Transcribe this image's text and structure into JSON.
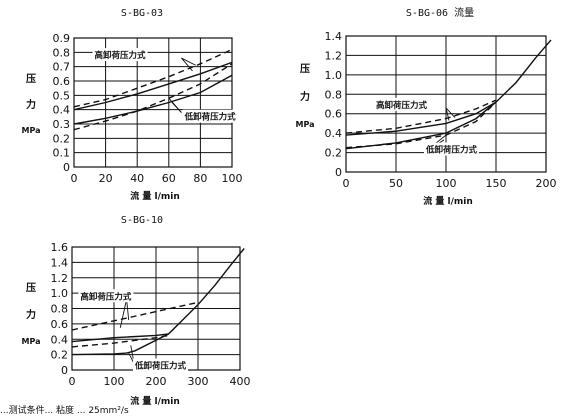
{
  "footer_note": "...测试条件... 粘度 ... 25mm²/s",
  "chart_data": [
    {
      "type": "line",
      "title": "S-BG-03",
      "xlabel": "流 量 l/min",
      "ylabel_top": "压",
      "ylabel_mid": "力",
      "ylabel_unit": "MPa",
      "xlim": [
        0,
        100
      ],
      "ylim": [
        0,
        0.9
      ],
      "x_ticks": [
        0,
        20,
        40,
        60,
        80,
        100
      ],
      "y_ticks": [
        0,
        0.1,
        0.2,
        0.3,
        0.4,
        0.5,
        0.6,
        0.7,
        0.8,
        0.9
      ],
      "x_tick_labels": [
        "0",
        "20",
        "40",
        "60",
        "80",
        "100"
      ],
      "y_tick_labels": [
        "0",
        "0.1",
        "0.2",
        "0.3",
        "0.4",
        "0.5",
        "0.6",
        "0.7",
        "0.8",
        "0.9"
      ],
      "annotations": [
        {
          "text": "高卸荷压力式",
          "x": 13,
          "y": 0.76
        },
        {
          "text": "低卸荷压力式",
          "x": 70,
          "y": 0.33
        }
      ],
      "series": [
        {
          "style": "solid",
          "x": [
            0,
            20,
            40,
            60,
            80,
            100
          ],
          "y": [
            0.4,
            0.45,
            0.51,
            0.58,
            0.65,
            0.73
          ]
        },
        {
          "style": "dash",
          "x": [
            0,
            20,
            40,
            60,
            80,
            100
          ],
          "y": [
            0.42,
            0.47,
            0.55,
            0.63,
            0.72,
            0.82
          ]
        },
        {
          "style": "solid",
          "x": [
            0,
            20,
            40,
            60,
            80,
            100
          ],
          "y": [
            0.3,
            0.34,
            0.39,
            0.45,
            0.52,
            0.64
          ]
        },
        {
          "style": "dash",
          "x": [
            0,
            20,
            40,
            60,
            80,
            100
          ],
          "y": [
            0.26,
            0.32,
            0.39,
            0.48,
            0.58,
            0.72
          ]
        }
      ]
    },
    {
      "type": "line",
      "title": "S-BG-06 流量",
      "xlabel": "流 量 l/min",
      "ylabel_top": "压",
      "ylabel_mid": "力",
      "ylabel_unit": "MPa",
      "xlim": [
        0,
        200
      ],
      "ylim": [
        0,
        1.4
      ],
      "x_ticks": [
        0,
        50,
        100,
        150,
        200
      ],
      "y_ticks": [
        0,
        0.2,
        0.4,
        0.6,
        0.8,
        1.0,
        1.2,
        1.4
      ],
      "x_tick_labels": [
        "0",
        "50",
        "100",
        "150",
        "200"
      ],
      "y_tick_labels": [
        "0",
        "0.2",
        "0.4",
        "0.6",
        "0.8",
        "1.0",
        "1.2",
        "1.4"
      ],
      "annotations": [
        {
          "text": "高卸荷压力式",
          "x": 30,
          "y": 0.66
        },
        {
          "text": "低卸荷压力式",
          "x": 80,
          "y": 0.2
        }
      ],
      "series": [
        {
          "style": "solid",
          "x": [
            0,
            50,
            100,
            130,
            150,
            170,
            190,
            205
          ],
          "y": [
            0.38,
            0.42,
            0.5,
            0.6,
            0.72,
            0.92,
            1.18,
            1.36
          ]
        },
        {
          "style": "dash",
          "x": [
            0,
            50,
            100,
            130,
            150
          ],
          "y": [
            0.4,
            0.45,
            0.55,
            0.65,
            0.74
          ]
        },
        {
          "style": "solid",
          "x": [
            0,
            50,
            100,
            130,
            150
          ],
          "y": [
            0.24,
            0.3,
            0.4,
            0.55,
            0.72
          ]
        },
        {
          "style": "dash",
          "x": [
            0,
            50,
            100,
            130,
            150
          ],
          "y": [
            0.25,
            0.29,
            0.38,
            0.52,
            0.72
          ]
        }
      ]
    },
    {
      "type": "line",
      "title": "S-BG-10",
      "xlabel": "流 量 l/min",
      "ylabel_top": "压",
      "ylabel_mid": "力",
      "ylabel_unit": "MPa",
      "xlim": [
        0,
        400
      ],
      "ylim": [
        0,
        1.6
      ],
      "x_ticks": [
        0,
        100,
        200,
        300,
        400
      ],
      "y_ticks": [
        0,
        0.2,
        0.4,
        0.6,
        0.8,
        1.0,
        1.2,
        1.4,
        1.6
      ],
      "x_tick_labels": [
        "0",
        "100",
        "200",
        "300",
        "400"
      ],
      "y_tick_labels": [
        "0",
        "0.2",
        "0.4",
        "0.6",
        "0.8",
        "1.0",
        "1.2",
        "1.4",
        "1.6"
      ],
      "annotations": [
        {
          "text": "高卸荷压力式",
          "x": 20,
          "y": 0.92
        },
        {
          "text": "低卸荷压力式",
          "x": 150,
          "y": 0.02
        }
      ],
      "series": [
        {
          "style": "solid",
          "x": [
            0,
            100,
            200,
            230,
            300,
            340,
            380,
            410
          ],
          "y": [
            0.37,
            0.42,
            0.45,
            0.47,
            0.85,
            1.1,
            1.38,
            1.58
          ]
        },
        {
          "style": "dash",
          "x": [
            0,
            100,
            200,
            300
          ],
          "y": [
            0.52,
            0.64,
            0.76,
            0.88
          ]
        },
        {
          "style": "solid",
          "x": [
            0,
            100,
            130,
            150,
            230
          ],
          "y": [
            0.2,
            0.21,
            0.22,
            0.25,
            0.47
          ]
        },
        {
          "style": "dash",
          "x": [
            0,
            100,
            200,
            230
          ],
          "y": [
            0.3,
            0.35,
            0.42,
            0.45
          ]
        }
      ]
    }
  ]
}
